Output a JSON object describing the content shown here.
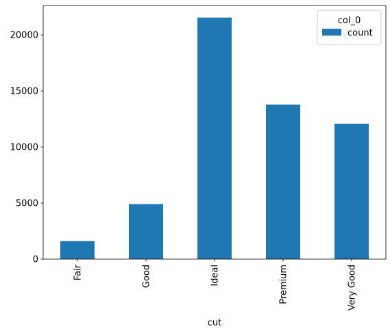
{
  "chart_data": {
    "type": "bar",
    "categories": [
      "Fair",
      "Good",
      "Ideal",
      "Premium",
      "Very Good"
    ],
    "series": [
      {
        "name": "count",
        "values": [
          1610,
          4906,
          21551,
          13791,
          12082
        ],
        "color": "#1f77b4"
      }
    ],
    "title": "",
    "xlabel": "cut",
    "ylabel": "",
    "ylim": [
      0,
      22629
    ],
    "yticks": [
      0,
      5000,
      10000,
      15000,
      20000
    ],
    "grid": false,
    "legend": {
      "title": "col_0",
      "placement": "top-right"
    }
  }
}
